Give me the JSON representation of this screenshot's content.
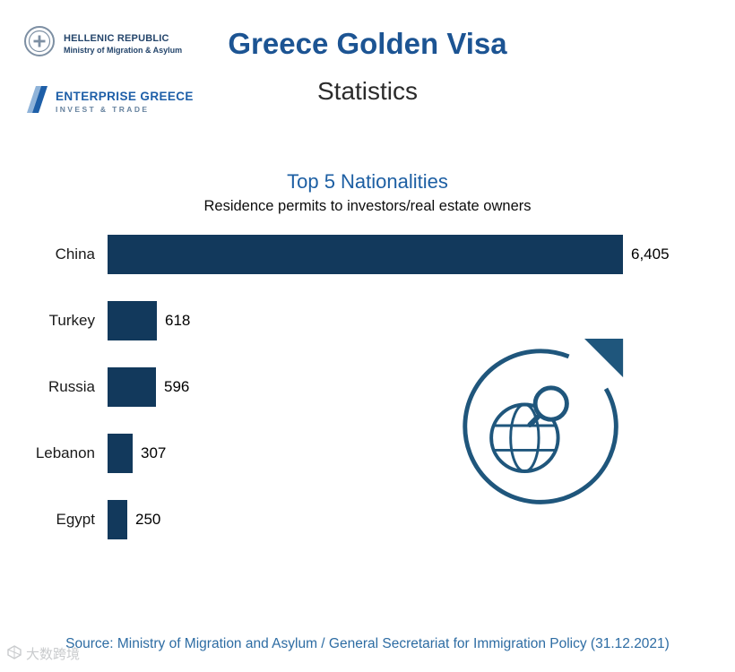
{
  "header": {
    "hellenic_republic": {
      "line1": "HELLENIC REPUBLIC",
      "line2": "Ministry of Migration & Asylum"
    },
    "enterprise_greece": {
      "line1": "ENTERPRISE GREECE",
      "line2": "INVEST & TRADE"
    },
    "title": "Greece Golden Visa",
    "subtitle": "Statistics"
  },
  "chart_data": {
    "type": "bar",
    "orientation": "horizontal",
    "title": "Top 5 Nationalities",
    "subtitle": "Residence permits to investors/real estate owners",
    "categories": [
      "China",
      "Turkey",
      "Russia",
      "Lebanon",
      "Egypt"
    ],
    "values": [
      6405,
      618,
      596,
      307,
      250
    ],
    "value_labels": [
      "6,405",
      "618",
      "596",
      "307",
      "250"
    ],
    "xlim": [
      0,
      6405
    ],
    "bar_color": "#12395c",
    "grid": false,
    "legend": false
  },
  "footer": {
    "source": "Source: Ministry of Migration and Asylum / General Secretariat for Immigration Policy (31.12.2021)"
  },
  "watermark": {
    "text": "大数跨境"
  },
  "colors": {
    "title_blue": "#1c5493",
    "chart_title_blue": "#1d5fa3",
    "source_blue": "#2d6ca3",
    "bar_navy": "#12395c",
    "logo_outline_blue": "#1f567c",
    "enterprise_blue": "#1e5fa8"
  }
}
